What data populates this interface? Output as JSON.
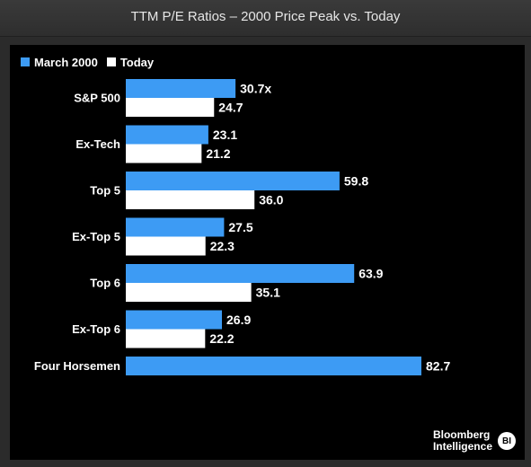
{
  "title": "TTM P/E Ratios – 2000 Price Peak vs. Today",
  "colors": {
    "march2000": "#3d9bf4",
    "today": "#ffffff",
    "background": "#000000",
    "label": "#ffffff"
  },
  "legend": {
    "series_1": "March 2000",
    "series_2": "Today"
  },
  "branding": {
    "line1": "Bloomberg",
    "line2": "Intelligence",
    "badge": "BI"
  },
  "chart_data": {
    "type": "bar",
    "orientation": "horizontal",
    "categories": [
      "S&P 500",
      "Ex-Tech",
      "Top 5",
      "Ex-Top 5",
      "Top 6",
      "Ex-Top 6",
      "Four Horsemen"
    ],
    "series": [
      {
        "name": "March 2000",
        "values": [
          30.7,
          23.1,
          59.8,
          27.5,
          63.9,
          26.9,
          82.7
        ],
        "labels": [
          "30.7x",
          "23.1",
          "59.8",
          "27.5",
          "63.9",
          "26.9",
          "82.7"
        ]
      },
      {
        "name": "Today",
        "values": [
          24.7,
          21.2,
          36.0,
          22.3,
          35.1,
          22.2,
          null
        ],
        "labels": [
          "24.7",
          "21.2",
          "36.0",
          "22.3",
          "35.1",
          "22.2",
          null
        ]
      }
    ],
    "xlim": [
      0,
      82.7
    ],
    "grid": false,
    "legend_position": "top-left"
  }
}
